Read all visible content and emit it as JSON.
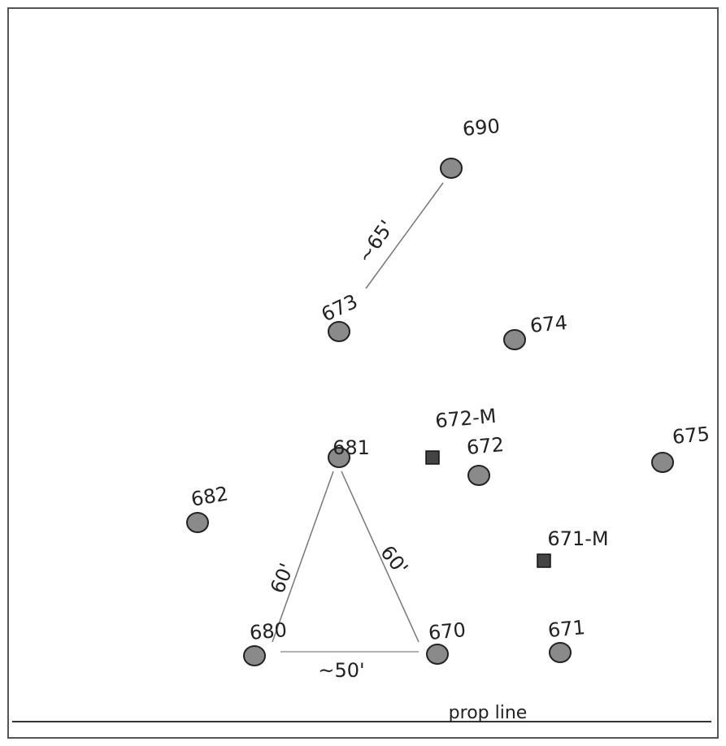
{
  "nodes": [
    {
      "label": "690",
      "shape": "circle"
    },
    {
      "label": "673",
      "shape": "circle"
    },
    {
      "label": "674",
      "shape": "circle"
    },
    {
      "label": "681",
      "shape": "circle"
    },
    {
      "label": "672-M",
      "shape": "square"
    },
    {
      "label": "672",
      "shape": "circle"
    },
    {
      "label": "675",
      "shape": "circle"
    },
    {
      "label": "682",
      "shape": "circle"
    },
    {
      "label": "671-M",
      "shape": "square"
    },
    {
      "label": "680",
      "shape": "circle"
    },
    {
      "label": "670",
      "shape": "circle"
    },
    {
      "label": "671",
      "shape": "circle"
    }
  ],
  "edges": [
    {
      "label": "~65'"
    },
    {
      "label": "60'"
    },
    {
      "label": "60'"
    },
    {
      "label": "~50'"
    }
  ],
  "prop_line": {
    "label": "prop line"
  }
}
